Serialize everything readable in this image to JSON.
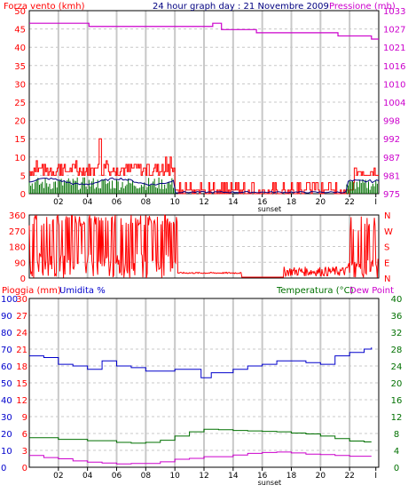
{
  "header": {
    "left_label": "Forza vento (kmh)",
    "title": "24 hour graph day : 21 Novembre 2009",
    "right_label": "Pressione (mb)"
  },
  "mid_header": {
    "left_label": "Pioggia (mm)",
    "left_label2": "Umidita %",
    "right_label": "Temperatura (°C)",
    "right_label2": "Dew Point"
  },
  "sunset_label": "sunset",
  "x_ticks": [
    "02",
    "04",
    "06",
    "08",
    "10",
    "12",
    "14",
    "16",
    "18",
    "20",
    "22",
    "I"
  ],
  "colors": {
    "wind": "#ff0000",
    "avg_wind": "#000080",
    "green": "#007000",
    "pressure": "#cc00cc",
    "humidity": "#0000cc",
    "grid": "#c8c8c8",
    "frame": "#000000"
  },
  "chart_data": [
    {
      "type": "line",
      "name": "wind_pressure",
      "left_ticks": [
        "0",
        "5",
        "10",
        "15",
        "20",
        "25",
        "30",
        "35",
        "40",
        "45",
        "50"
      ],
      "right_ticks": [
        "975",
        "981",
        "987",
        "992",
        "998",
        "1004",
        "1010",
        "1016",
        "1021",
        "1027",
        "1033"
      ],
      "ylim": [
        0,
        50
      ],
      "series": [
        {
          "key": "pressure",
          "values_time": [
            0,
            4,
            4.1,
            10,
            10.5,
            11.8,
            12.6,
            13.2,
            15.6,
            21,
            21.2,
            23.5
          ],
          "values": [
            1029,
            1029,
            1028,
            1028,
            1028,
            1028,
            1029,
            1027,
            1026,
            1026,
            1025,
            1024
          ]
        }
      ]
    },
    {
      "type": "line",
      "name": "wind_direction",
      "left_ticks": [
        "360",
        "270",
        "180",
        "90",
        "0"
      ],
      "right_ticks": [
        "N",
        "W",
        "S",
        "E",
        "N"
      ],
      "ylim": [
        0,
        360
      ]
    },
    {
      "type": "line",
      "name": "temp_hum",
      "rain_ticks": [
        "0",
        "3",
        "6",
        "9",
        "12",
        "15",
        "18",
        "21",
        "24",
        "27",
        "30"
      ],
      "hum_ticks": [
        "0",
        "10",
        "20",
        "30",
        "40",
        "50",
        "60",
        "70",
        "80",
        "90",
        "100"
      ],
      "temp_ticks": [
        "0",
        "4",
        "8",
        "12",
        "16",
        "20",
        "24",
        "28",
        "32",
        "36",
        "40"
      ],
      "series": [
        {
          "key": "humidity",
          "time": [
            0,
            1,
            2,
            3,
            4,
            5,
            6,
            7,
            8,
            9,
            10,
            11,
            11.8,
            12.5,
            13,
            14,
            15,
            16,
            17,
            18,
            19,
            20,
            21,
            22,
            23,
            23.5
          ],
          "values": [
            66,
            65,
            61,
            60,
            58,
            63,
            60,
            59,
            57,
            57,
            58,
            58,
            53,
            56,
            56,
            58,
            60,
            61,
            63,
            63,
            62,
            61,
            66,
            68,
            70,
            71
          ]
        },
        {
          "key": "temperature",
          "time": [
            0,
            2,
            4,
            6,
            7,
            8,
            9,
            10,
            11,
            12,
            13,
            14,
            15,
            16,
            17,
            18,
            19,
            20,
            21,
            22,
            23,
            23.5
          ],
          "values": [
            7,
            6.6,
            6.3,
            5.9,
            5.7,
            5.9,
            6.4,
            7.4,
            8.4,
            9.0,
            8.9,
            8.7,
            8.6,
            8.5,
            8.4,
            8.1,
            7.9,
            7.4,
            6.8,
            6.2,
            6.0,
            6.0
          ]
        },
        {
          "key": "dewpoint",
          "time": [
            0,
            1,
            2,
            3,
            4,
            5,
            6,
            7,
            8,
            9,
            10,
            11,
            12,
            13,
            14,
            15,
            16,
            17,
            18,
            19,
            20,
            21,
            22,
            23,
            23.5
          ],
          "values": [
            2.8,
            2.3,
            2.0,
            1.5,
            1.2,
            1.0,
            0.8,
            0.9,
            0.9,
            1.3,
            1.9,
            2.1,
            2.5,
            2.5,
            2.9,
            3.3,
            3.5,
            3.6,
            3.4,
            3.1,
            3.0,
            2.8,
            2.6,
            2.6,
            2.6
          ]
        }
      ]
    }
  ]
}
